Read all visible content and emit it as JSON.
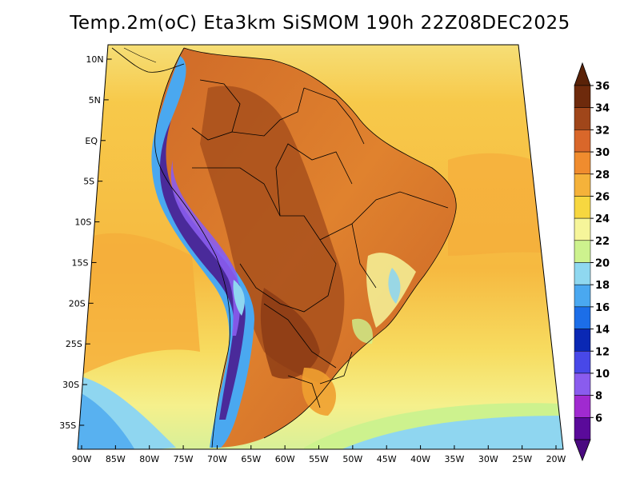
{
  "title": "Temp.2m(oC) Eta3km SiSMOM 190h 22Z08DEC2025",
  "colors": {
    "ocean_warm": "#f5cf4a",
    "ocean_mid": "#f5b840",
    "ocean_cool": "#f4ef80",
    "ocean_cold": "#8fd3f0",
    "land_hot": "#b8561e",
    "land_warm": "#d9782a",
    "andes_cold": "#4a2a9a",
    "border": "#000000"
  },
  "axes": {
    "lat_labels": [
      "10N",
      "5N",
      "EQ",
      "5S",
      "10S",
      "15S",
      "20S",
      "25S",
      "30S",
      "35S"
    ],
    "lon_labels": [
      "90W",
      "85W",
      "80W",
      "75W",
      "70W",
      "65W",
      "60W",
      "55W",
      "50W",
      "45W",
      "40W",
      "35W",
      "30W",
      "25W",
      "20W"
    ]
  },
  "colorbar": {
    "labels": [
      "36",
      "34",
      "32",
      "30",
      "28",
      "26",
      "24",
      "22",
      "20",
      "18",
      "16",
      "14",
      "12",
      "10",
      "8",
      "6"
    ],
    "bins": [
      {
        "label": "34-36",
        "color": "#6e2a0c"
      },
      {
        "label": "32-34",
        "color": "#a0461a"
      },
      {
        "label": "30-32",
        "color": "#d9672a"
      },
      {
        "label": "28-30",
        "color": "#f08c2e"
      },
      {
        "label": "26-28",
        "color": "#f5b23a"
      },
      {
        "label": "24-26",
        "color": "#f7d740"
      },
      {
        "label": "22-24",
        "color": "#f6f59a"
      },
      {
        "label": "20-22",
        "color": "#cdf28e"
      },
      {
        "label": "18-20",
        "color": "#8fd8f0"
      },
      {
        "label": "16-18",
        "color": "#4aa8f0"
      },
      {
        "label": "14-16",
        "color": "#1c6ee8"
      },
      {
        "label": "12-14",
        "color": "#0a28b4"
      },
      {
        "label": "10-12",
        "color": "#4848e8"
      },
      {
        "label": "8-10",
        "color": "#8a5cee"
      },
      {
        "label": "6-8",
        "color": "#a02ad0"
      },
      {
        "label": "below 6",
        "color": "#5a0a9a"
      }
    ],
    "top_arrow_color": "#5a2208",
    "bottom_arrow_color": "#4a0a80"
  }
}
